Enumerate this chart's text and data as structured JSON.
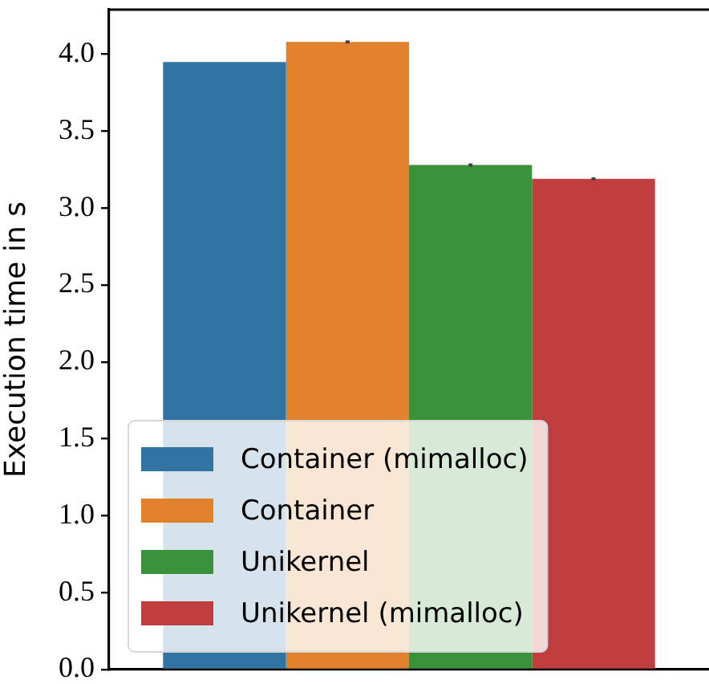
{
  "chart_data": {
    "type": "bar",
    "ylabel": "Execution time in s",
    "categories": [
      null
    ],
    "series": [
      {
        "name": "Container (mimalloc)",
        "color": "#3274a1",
        "values": [
          3.95
        ]
      },
      {
        "name": "Container",
        "color": "#e1812c",
        "values": [
          4.08
        ],
        "errors": [
          0.01
        ]
      },
      {
        "name": "Unikernel",
        "color": "#3a923a",
        "values": [
          3.28
        ],
        "errors": [
          0.01
        ]
      },
      {
        "name": "Unikernel (mimalloc)",
        "color": "#c03d3e",
        "values": [
          3.19
        ],
        "errors": [
          0.01
        ]
      }
    ],
    "ylim": [
      0,
      4.29
    ],
    "yticks": [
      {
        "value": 0,
        "label": "0.0"
      },
      0.5,
      {
        "value": 1,
        "label": "1.0"
      },
      1.5,
      {
        "value": 2,
        "label": "2.0"
      },
      2.5,
      {
        "value": 3,
        "label": "3.0"
      },
      3.5,
      {
        "value": 4,
        "label": "4.0"
      }
    ],
    "tick_labels": "y",
    "legend": "bottom left"
  }
}
